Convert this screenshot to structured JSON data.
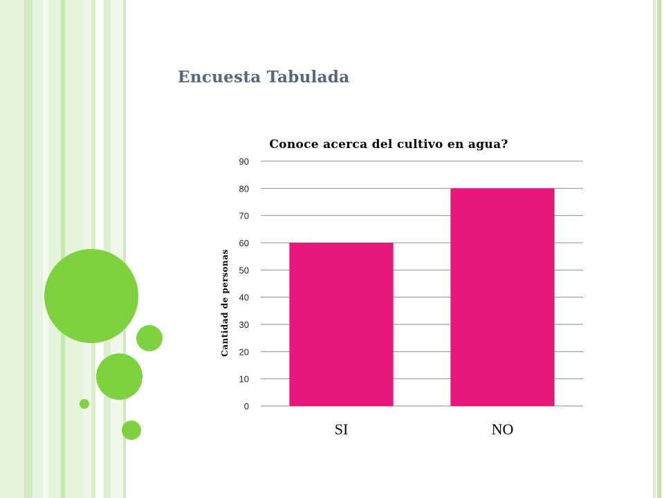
{
  "slide": {
    "title": "Encuesta Tabulada"
  },
  "decor": {
    "accent_green": "#7ed13f",
    "stripe_green": "#dff0d3"
  },
  "chart_data": {
    "type": "bar",
    "title": "Conoce acerca del cultivo en agua?",
    "xlabel": "",
    "ylabel": "Cantidad de personas",
    "categories": [
      "SI",
      "NO"
    ],
    "values": [
      60,
      80
    ],
    "ylim": [
      0,
      90
    ],
    "yticks": [
      0,
      10,
      20,
      30,
      40,
      50,
      60,
      70,
      80,
      90
    ],
    "bar_color": "#e8177b",
    "grid": true,
    "legend": "none"
  }
}
